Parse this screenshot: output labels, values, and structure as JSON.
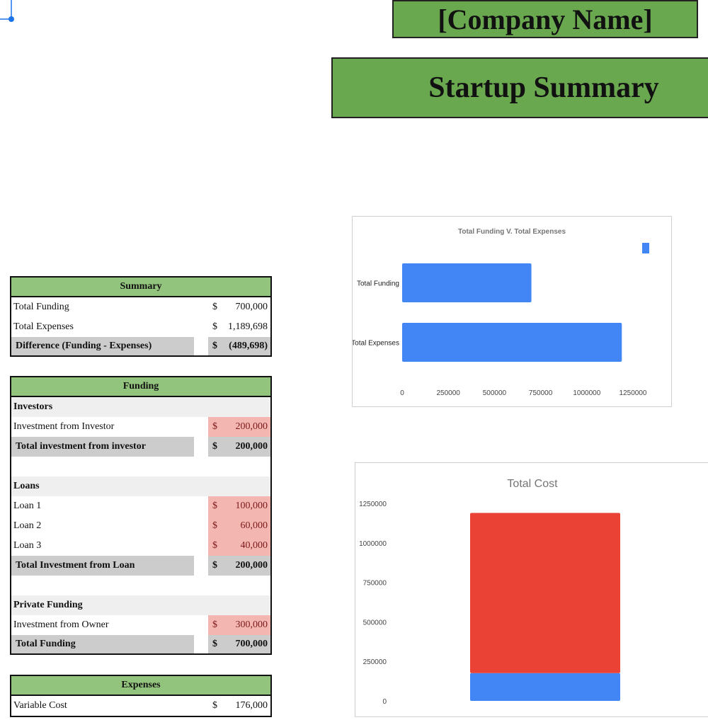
{
  "header": {
    "company_name": "[Company Name]",
    "title": "Startup Summary"
  },
  "summary_table": {
    "header": "Summary",
    "rows": [
      {
        "label": "Total Funding",
        "currency": "$",
        "value": "700,000"
      },
      {
        "label": "Total Expenses",
        "currency": "$",
        "value": "1,189,698"
      },
      {
        "label": "Difference (Funding - Expenses)",
        "currency": "$",
        "value": "(489,698)"
      }
    ]
  },
  "funding_table": {
    "header": "Funding",
    "investors": {
      "section": "Investors",
      "items": [
        {
          "label": "Investment from Investor",
          "currency": "$",
          "value": "200,000"
        }
      ],
      "total": {
        "label": "Total investment from investor",
        "currency": "$",
        "value": "200,000"
      }
    },
    "loans": {
      "section": "Loans",
      "items": [
        {
          "label": "Loan 1",
          "currency": "$",
          "value": "100,000"
        },
        {
          "label": "Loan 2",
          "currency": "$",
          "value": "60,000"
        },
        {
          "label": "Loan 3",
          "currency": "$",
          "value": "40,000"
        }
      ],
      "total": {
        "label": "Total Investment from Loan",
        "currency": "$",
        "value": "200,000"
      }
    },
    "private": {
      "section": "Private Funding",
      "items": [
        {
          "label": "Investment from Owner",
          "currency": "$",
          "value": "300,000"
        }
      ],
      "total": {
        "label": "Total Funding",
        "currency": "$",
        "value": "700,000"
      }
    }
  },
  "expenses_table": {
    "header": "Expenses",
    "rows": [
      {
        "label": "Variable Cost",
        "currency": "$",
        "value": "176,000"
      }
    ]
  },
  "chart_data": [
    {
      "type": "bar",
      "orientation": "horizontal",
      "title": "Total Funding V. Total Expenses",
      "categories": [
        "Total Funding",
        "Total Expenses"
      ],
      "values": [
        700000,
        1189698
      ],
      "xlim": [
        0,
        1250000
      ],
      "x_ticks": [
        "0",
        "250000",
        "500000",
        "750000",
        "1000000",
        "1250000"
      ],
      "color": "#4285f4",
      "legend": "top-right"
    },
    {
      "type": "bar",
      "stacked": true,
      "title": "Total Cost",
      "categories": [
        ""
      ],
      "series": [
        {
          "values": [
            176000
          ],
          "color": "#4285f4"
        },
        {
          "values": [
            1013698
          ],
          "color": "#ea4335"
        }
      ],
      "ylim": [
        0,
        1250000
      ],
      "y_ticks": [
        "0",
        "250000",
        "500000",
        "750000",
        "1000000",
        "1250000"
      ]
    }
  ],
  "colors": {
    "banner_green": "#6aa84f",
    "header_green": "#93c47d",
    "input_pink": "#f4b6b0",
    "total_gray": "#cccccc",
    "bar_blue": "#4285f4",
    "bar_red": "#ea4335"
  }
}
